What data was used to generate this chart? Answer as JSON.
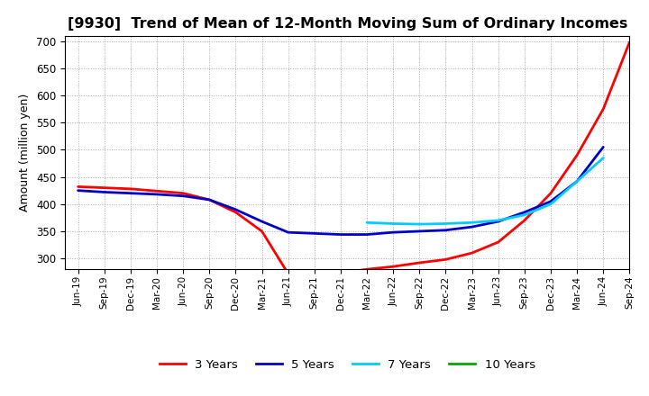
{
  "title": "[9930]  Trend of Mean of 12-Month Moving Sum of Ordinary Incomes",
  "ylabel": "Amount (million yen)",
  "ylim": [
    280,
    710
  ],
  "yticks": [
    300,
    350,
    400,
    450,
    500,
    550,
    600,
    650,
    700
  ],
  "background_color": "#ffffff",
  "grid_color": "#aaaaaa",
  "title_fontsize": 11.5,
  "axis_fontsize": 9,
  "tick_labels": [
    "Jun-19",
    "Sep-19",
    "Dec-19",
    "Mar-20",
    "Jun-20",
    "Sep-20",
    "Dec-20",
    "Mar-21",
    "Jun-21",
    "Sep-21",
    "Dec-21",
    "Mar-22",
    "Jun-22",
    "Sep-22",
    "Dec-22",
    "Mar-23",
    "Jun-23",
    "Sep-23",
    "Dec-23",
    "Mar-24",
    "Jun-24",
    "Sep-24"
  ],
  "series": {
    "3 Years": {
      "color": "#ff0000",
      "x": [
        0,
        1,
        2,
        3,
        4,
        5,
        6,
        7,
        8,
        9,
        10,
        11,
        12,
        13,
        14,
        15,
        16,
        17,
        18,
        19,
        20,
        21
      ],
      "y": [
        432,
        430,
        428,
        424,
        420,
        408,
        385,
        350,
        272,
        268,
        273,
        280,
        285,
        292,
        298,
        310,
        330,
        370,
        420,
        490,
        575,
        698
      ]
    },
    "5 Years": {
      "color": "#0000cc",
      "x": [
        0,
        1,
        2,
        3,
        4,
        5,
        6,
        7,
        8,
        9,
        10,
        11,
        12,
        13,
        14,
        15,
        16,
        17,
        18,
        19,
        20
      ],
      "y": [
        425,
        422,
        420,
        418,
        415,
        408,
        390,
        368,
        348,
        346,
        344,
        344,
        348,
        350,
        352,
        358,
        368,
        385,
        405,
        442,
        505
      ]
    },
    "7 Years": {
      "color": "#00ccff",
      "x": [
        11,
        12,
        13,
        14,
        15,
        16,
        17,
        18,
        19,
        20
      ],
      "y": [
        366,
        364,
        363,
        364,
        366,
        370,
        380,
        400,
        442,
        485
      ]
    },
    "10 Years": {
      "color": "#00aa00",
      "x": [],
      "y": []
    }
  },
  "legend_items": [
    {
      "label": "3 Years",
      "color": "#ff0000"
    },
    {
      "label": "5 Years",
      "color": "#0000cc"
    },
    {
      "label": "7 Years",
      "color": "#00ccff"
    },
    {
      "label": "10 Years",
      "color": "#00aa00"
    }
  ]
}
